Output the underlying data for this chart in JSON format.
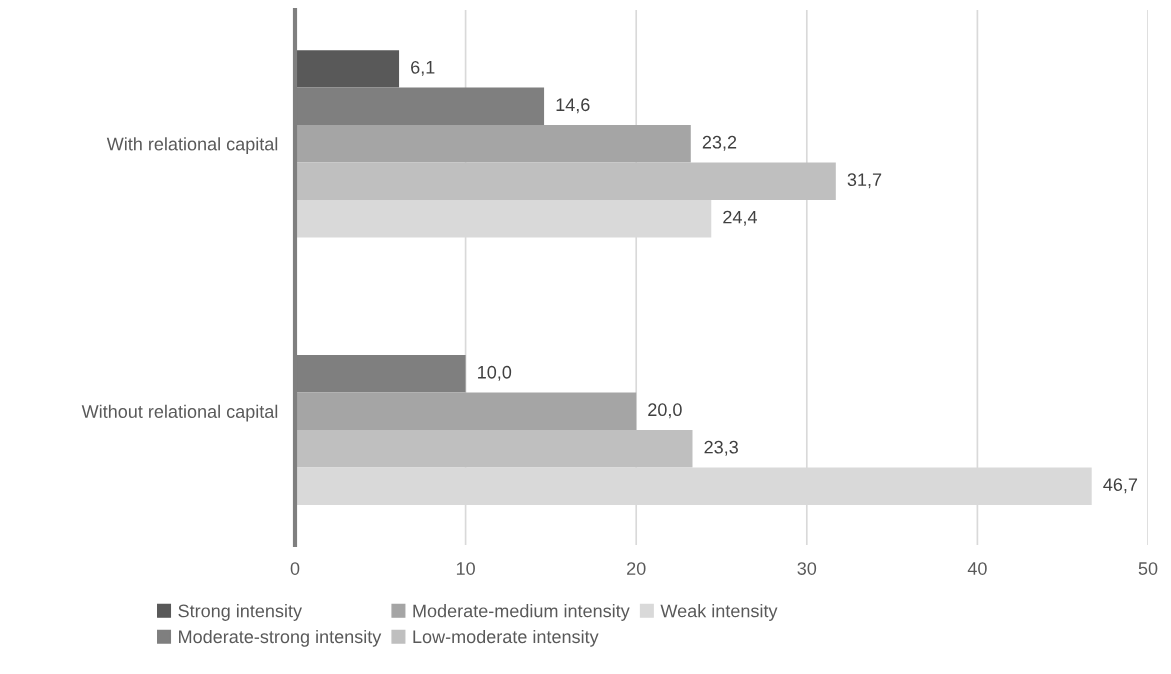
{
  "chart_data": {
    "type": "bar",
    "orientation": "horizontal",
    "categories": [
      "With relational capital",
      "Without relational capital"
    ],
    "series": [
      {
        "name": "Strong intensity",
        "color": "#595959",
        "values": [
          6.1,
          null
        ],
        "value_labels": [
          "6,1",
          null
        ]
      },
      {
        "name": "Moderate-strong intensity",
        "color": "#7f7f7f",
        "values": [
          14.6,
          10.0
        ],
        "value_labels": [
          "14,6",
          "10,0"
        ]
      },
      {
        "name": "Moderate-medium intensity",
        "color": "#a5a5a5",
        "values": [
          23.2,
          20.0
        ],
        "value_labels": [
          "23,2",
          "20,0"
        ]
      },
      {
        "name": "Low-moderate intensity",
        "color": "#bfbfbf",
        "values": [
          31.7,
          23.3
        ],
        "value_labels": [
          "31,7",
          "23,3"
        ]
      },
      {
        "name": "Weak intensity",
        "color": "#d9d9d9",
        "values": [
          24.4,
          46.7
        ],
        "value_labels": [
          "24,4",
          "46,7"
        ]
      }
    ],
    "xlim": [
      0,
      50
    ],
    "xticks": [
      0,
      10,
      20,
      30,
      40,
      50
    ],
    "grid": "x",
    "legend": "bottom"
  }
}
